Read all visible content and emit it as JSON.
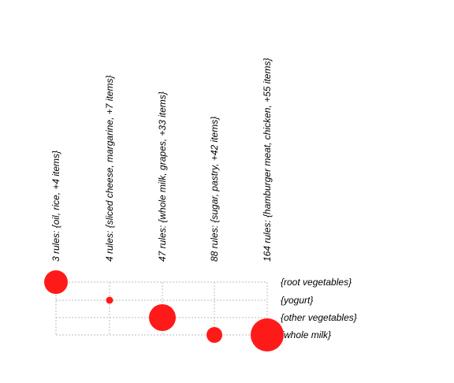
{
  "chart_data": {
    "type": "grouped-matrix",
    "columns": [
      "3 rules: {oil, rice, +4 items}",
      "4 rules: {sliced cheese, margarine, +7 items}",
      "47 rules: {whole milk, grapes, +33 items}",
      "88 rules: {sugar, pastry, +42 items}",
      "164 rules: {hamburger meat, chicken, +55 items}"
    ],
    "rows": [
      "{root vegetables}",
      "{yogurt}",
      "{other vegetables}",
      "{whole milk}"
    ],
    "points": [
      {
        "col": 0,
        "row": 0,
        "size": 15
      },
      {
        "col": 1,
        "row": 1,
        "size": 4.5
      },
      {
        "col": 2,
        "row": 2,
        "size": 17
      },
      {
        "col": 3,
        "row": 3,
        "size": 10
      },
      {
        "col": 4,
        "row": 3,
        "size": 21
      }
    ],
    "color": "#ff1a1a",
    "grid": true
  }
}
